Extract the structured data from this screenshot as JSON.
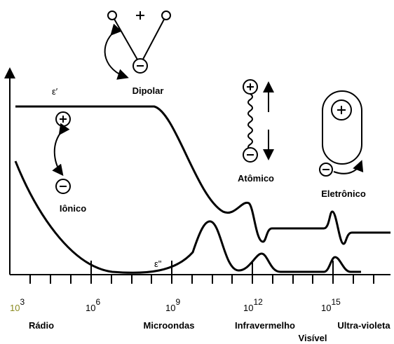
{
  "labels": {
    "epsilon_real": "ε′",
    "epsilon_imag": "ε\"",
    "dipolar": "Dipolar",
    "atomic": "Atômico",
    "electronic": "Eletrônico",
    "ionic": "Iônico"
  },
  "axis": {
    "ticks": [
      {
        "base": "10",
        "exponent": "3"
      },
      {
        "base": "10",
        "exponent": "6"
      },
      {
        "base": "10",
        "exponent": "9"
      },
      {
        "base": "10",
        "exponent": "12"
      },
      {
        "base": "10",
        "exponent": "15"
      }
    ],
    "bands": [
      "Rádio",
      "Microondas",
      "Infravermelho",
      "Visível",
      "Ultra-violeta"
    ]
  }
}
